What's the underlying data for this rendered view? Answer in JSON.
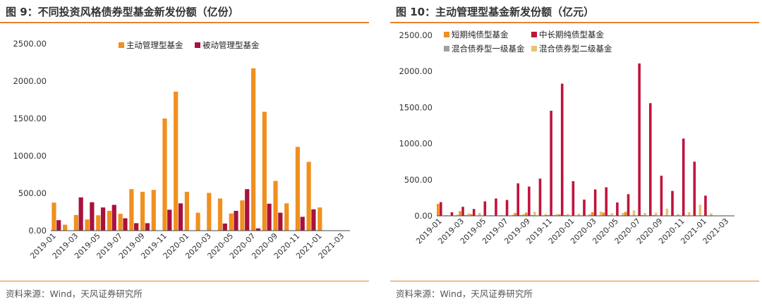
{
  "charts": [
    {
      "title": "图 9：不同投资风格债券型基金新发份额（亿份）",
      "source": "资料来源：Wind，天风证券研究所"
    },
    {
      "title": "图 10：主动管理型基金新发份额（亿元）",
      "source": "资料来源：Wind，天风证券研究所"
    }
  ],
  "chart_data": [
    {
      "type": "bar",
      "title": "图 9：不同投资风格债券型基金新发份额（亿份）",
      "ylim": [
        0,
        2500
      ],
      "ytick_labels": [
        "0.00",
        "500.00",
        "1000.00",
        "1500.00",
        "2000.00",
        "2500.00"
      ],
      "categories": [
        "2019-01",
        "2019-02",
        "2019-03",
        "2019-04",
        "2019-05",
        "2019-06",
        "2019-07",
        "2019-08",
        "2019-09",
        "2019-10",
        "2019-11",
        "2019-12",
        "2020-01",
        "2020-02",
        "2020-03",
        "2020-04",
        "2020-05",
        "2020-06",
        "2020-07",
        "2020-08",
        "2020-09",
        "2020-10",
        "2020-11",
        "2020-12",
        "2021-01",
        "2021-02",
        "2021-03"
      ],
      "xtick_labels": [
        "2019-01",
        "2019-03",
        "2019-05",
        "2019-07",
        "2019-09",
        "2019-11",
        "2020-01",
        "2020-03",
        "2020-05",
        "2020-07",
        "2020-09",
        "2020-11",
        "2021-01",
        "2021-03"
      ],
      "legend_position": "top-center",
      "grid": false,
      "colors": [
        "#f0901e",
        "#a8123c"
      ],
      "series": [
        {
          "name": "主动管理型基金",
          "values": [
            375,
            80,
            210,
            150,
            205,
            265,
            225,
            555,
            520,
            545,
            1500,
            1860,
            520,
            240,
            505,
            430,
            230,
            405,
            2170,
            1590,
            665,
            365,
            1120,
            920,
            310,
            0,
            0
          ]
        },
        {
          "name": "被动管理型基金",
          "values": [
            140,
            0,
            445,
            380,
            310,
            345,
            165,
            100,
            100,
            0,
            280,
            365,
            0,
            0,
            0,
            95,
            265,
            555,
            30,
            360,
            240,
            0,
            185,
            285,
            0,
            0,
            0
          ]
        }
      ]
    },
    {
      "type": "bar",
      "title": "图 10：主动管理型基金新发份额（亿元）",
      "ylim": [
        0,
        2500
      ],
      "ytick_labels": [
        "0.00",
        "500.00",
        "1000.00",
        "1500.00",
        "2000.00",
        "2500.00"
      ],
      "categories": [
        "2019-01",
        "2019-02",
        "2019-03",
        "2019-04",
        "2019-05",
        "2019-06",
        "2019-07",
        "2019-08",
        "2019-09",
        "2019-10",
        "2019-11",
        "2019-12",
        "2020-01",
        "2020-02",
        "2020-03",
        "2020-04",
        "2020-05",
        "2020-06",
        "2020-07",
        "2020-08",
        "2020-09",
        "2020-10",
        "2020-11",
        "2020-12",
        "2021-01",
        "2021-02",
        "2021-03"
      ],
      "xtick_labels": [
        "2019-01",
        "2019-03",
        "2019-05",
        "2019-07",
        "2019-09",
        "2019-11",
        "2020-01",
        "2020-03",
        "2020-05",
        "2020-07",
        "2020-09",
        "2020-11",
        "2021-01",
        "2021-03"
      ],
      "legend_position": "top-left",
      "grid": false,
      "colors": [
        "#f0901e",
        "#c0143c",
        "#a0a0a0",
        "#e6c27a"
      ],
      "series": [
        {
          "name": "短期纯债型基金",
          "values": [
            165,
            5,
            65,
            25,
            5,
            5,
            5,
            40,
            45,
            5,
            10,
            20,
            0,
            0,
            50,
            45,
            0,
            55,
            5,
            5,
            0,
            5,
            5,
            5,
            0,
            0,
            0
          ]
        },
        {
          "name": "中长期纯债型基金",
          "values": [
            190,
            50,
            125,
            95,
            200,
            240,
            220,
            450,
            405,
            515,
            1455,
            1830,
            480,
            225,
            365,
            395,
            185,
            300,
            2110,
            1560,
            555,
            345,
            1070,
            750,
            280,
            0,
            0
          ]
        },
        {
          "name": "混合债券型一级基金",
          "values": [
            5,
            5,
            10,
            5,
            5,
            5,
            5,
            10,
            10,
            5,
            10,
            10,
            5,
            5,
            5,
            10,
            5,
            5,
            10,
            10,
            5,
            5,
            5,
            5,
            5,
            0,
            0
          ]
        },
        {
          "name": "混合债券型二级基金",
          "values": [
            10,
            15,
            35,
            40,
            10,
            10,
            15,
            25,
            55,
            25,
            25,
            25,
            30,
            25,
            60,
            35,
            40,
            75,
            40,
            45,
            100,
            25,
            50,
            155,
            35,
            0,
            0
          ]
        }
      ]
    }
  ]
}
